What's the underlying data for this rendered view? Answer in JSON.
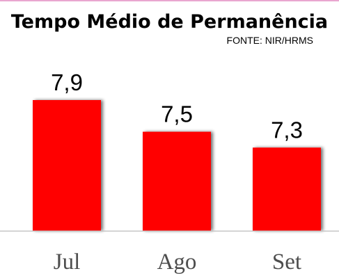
{
  "colors": {
    "bar": "#ff0000",
    "bar_shadow": "#9a9a9a",
    "axis": "#c4c4c4",
    "tick_text": "#4d4d4d",
    "top_rule": "#e9a6cf"
  },
  "chart_data": {
    "type": "bar",
    "title": "Tempo Médio de Permanência",
    "subtitle": "FONTE: NIR/HRMS",
    "categories": [
      "Jul",
      "Ago",
      "Set"
    ],
    "values": [
      7.9,
      7.5,
      7.3
    ],
    "value_labels": [
      "7,9",
      "7,5",
      "7,3"
    ],
    "xlabel": "",
    "ylabel": "",
    "ylim": [
      6.25,
      7.9
    ],
    "grid": false,
    "legend": "none"
  }
}
